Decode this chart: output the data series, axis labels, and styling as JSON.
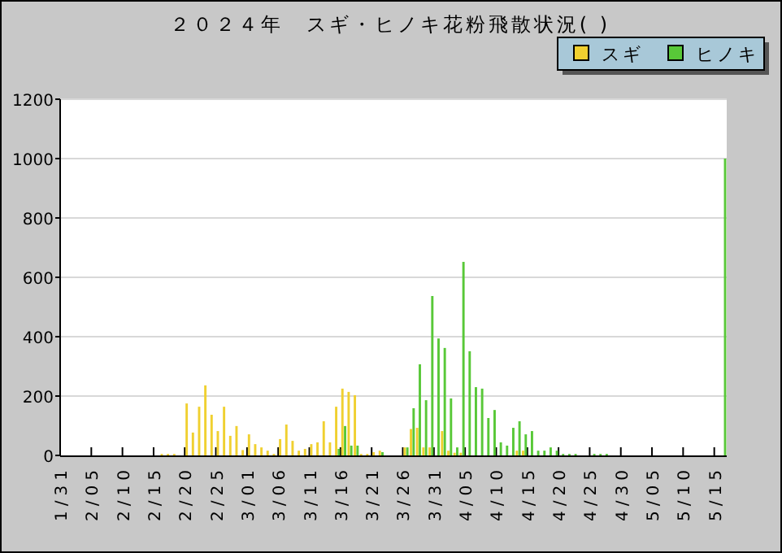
{
  "chart_data": {
    "type": "bar",
    "title": "２０２４年　スギ・ヒノキ花粉飛散状況( )",
    "xlim": [
      "--01-31",
      "--05-17"
    ],
    "xticks": [
      {
        "value": "--01-31",
        "label": "1/31"
      },
      {
        "value": "--02-05",
        "label": "2/05"
      },
      {
        "value": "--02-10",
        "label": "2/10"
      },
      {
        "value": "--02-15",
        "label": "2/15"
      },
      {
        "value": "--02-20",
        "label": "2/20"
      },
      {
        "value": "--02-25",
        "label": "2/25"
      },
      {
        "value": "--03-01",
        "label": "3/01"
      },
      {
        "value": "--03-06",
        "label": "3/06"
      },
      {
        "value": "--03-11",
        "label": "3/11"
      },
      {
        "value": "--03-16",
        "label": "3/16"
      },
      {
        "value": "--03-21",
        "label": "3/21"
      },
      {
        "value": "--03-26",
        "label": "3/26"
      },
      {
        "value": "--03-31",
        "label": "3/31"
      },
      {
        "value": "--04-05",
        "label": "4/05"
      },
      {
        "value": "--04-10",
        "label": "4/10"
      },
      {
        "value": "--04-15",
        "label": "4/15"
      },
      {
        "value": "--04-20",
        "label": "4/20"
      },
      {
        "value": "--04-25",
        "label": "4/25"
      },
      {
        "value": "--04-30",
        "label": "4/30"
      },
      {
        "value": "--05-05",
        "label": "5/05"
      },
      {
        "value": "--05-10",
        "label": "5/10"
      },
      {
        "value": "--05-15",
        "label": "5/15"
      }
    ],
    "ylim": [
      0,
      1200
    ],
    "yticks": [
      0,
      200,
      400,
      600,
      800,
      1000,
      1200
    ],
    "grid": "y",
    "legend": "top right",
    "series": [
      {
        "name": "スギ",
        "color": "#f0d030",
        "x": [
          "--02-16",
          "--02-17",
          "--02-18",
          "--02-20",
          "--02-21",
          "--02-22",
          "--02-23",
          "--02-24",
          "--02-25",
          "--02-26",
          "--02-27",
          "--02-28",
          "--02-29",
          "--03-01",
          "--03-02",
          "--03-03",
          "--03-04",
          "--03-05",
          "--03-06",
          "--03-07",
          "--03-08",
          "--03-09",
          "--03-10",
          "--03-11",
          "--03-12",
          "--03-13",
          "--03-14",
          "--03-15",
          "--03-16",
          "--03-17",
          "--03-18",
          "--03-19",
          "--03-20",
          "--03-21",
          "--03-22",
          "--03-26",
          "--03-27",
          "--03-28",
          "--03-29",
          "--03-30",
          "--04-01",
          "--04-02",
          "--04-03",
          "--04-04",
          "--04-13",
          "--04-14"
        ],
        "values": [
          5,
          5,
          5,
          175,
          77,
          164,
          236,
          137,
          82,
          164,
          66,
          99,
          18,
          71,
          38,
          27,
          16,
          5,
          55,
          104,
          49,
          16,
          22,
          38,
          44,
          115,
          44,
          164,
          225,
          214,
          203,
          5,
          5,
          11,
          16,
          27,
          89,
          93,
          27,
          27,
          82,
          16,
          9,
          9,
          16,
          16
        ]
      },
      {
        "name": "ヒノキ",
        "color": "#58c838",
        "x": [
          "--03-15",
          "--03-16",
          "--03-17",
          "--03-18",
          "--03-22",
          "--03-26",
          "--03-27",
          "--03-28",
          "--03-29",
          "--03-30",
          "--03-31",
          "--04-01",
          "--04-02",
          "--04-03",
          "--04-04",
          "--04-05",
          "--04-06",
          "--04-07",
          "--04-08",
          "--04-09",
          "--04-10",
          "--04-11",
          "--04-12",
          "--04-13",
          "--04-14",
          "--04-15",
          "--04-16",
          "--04-17",
          "--04-18",
          "--04-19",
          "--04-20",
          "--04-21",
          "--04-22",
          "--04-25",
          "--04-26",
          "--04-27",
          "--05-16"
        ],
        "values": [
          22,
          99,
          33,
          33,
          11,
          27,
          159,
          307,
          186,
          537,
          394,
          362,
          192,
          27,
          652,
          351,
          230,
          225,
          126,
          153,
          44,
          33,
          93,
          115,
          71,
          82,
          16,
          16,
          27,
          16,
          5,
          5,
          5,
          5,
          5,
          5,
          1000
        ]
      }
    ]
  }
}
